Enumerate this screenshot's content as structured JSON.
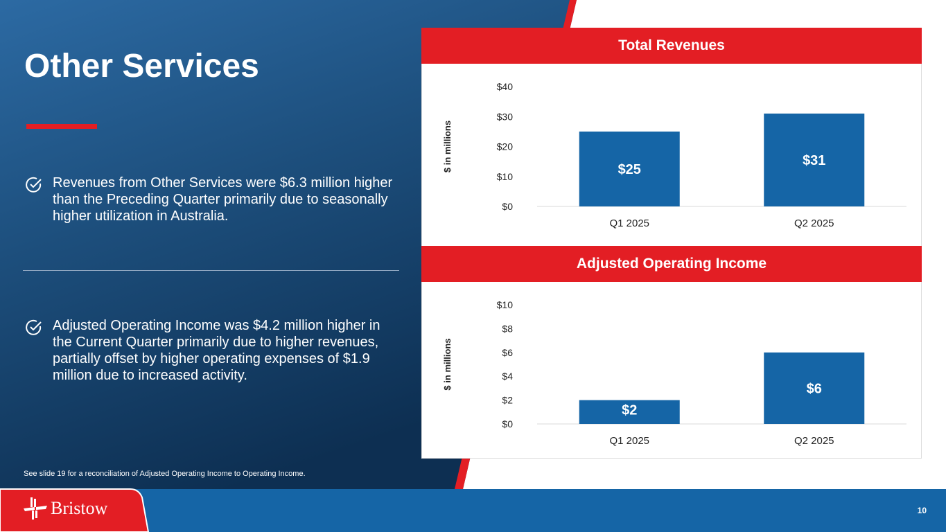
{
  "slide": {
    "title": "Other Services",
    "bullets": [
      "Revenues from Other Services were $6.3 million higher than the Preceding Quarter primarily due to seasonally higher utilization in Australia.",
      "Adjusted Operating Income was $4.2 million higher in the Current Quarter primarily due to higher revenues, partially offset by higher operating expenses of $1.9 million due to increased activity."
    ],
    "footnote": "See slide 19 for a reconciliation of Adjusted Operating Income to Operating Income.",
    "page_number": "10",
    "logo_text": "Bristow",
    "colors": {
      "brand_red": "#e31e24",
      "brand_blue": "#1565a6",
      "bar": "#1565a6"
    }
  },
  "chart_data": [
    {
      "type": "bar",
      "title": "Total Revenues",
      "ylabel": "$ in millions",
      "xlabel": "",
      "categories": [
        "Q1 2025",
        "Q2 2025"
      ],
      "values": [
        25,
        31
      ],
      "data_labels": [
        "$25",
        "$31"
      ],
      "yticks": [
        "$0",
        "$10",
        "$20",
        "$30",
        "$40"
      ],
      "ylim": [
        0,
        40
      ],
      "grid": false
    },
    {
      "type": "bar",
      "title": "Adjusted Operating Income",
      "ylabel": "$ in millions",
      "xlabel": "",
      "categories": [
        "Q1 2025",
        "Q2 2025"
      ],
      "values": [
        2,
        6
      ],
      "data_labels": [
        "$2",
        "$6"
      ],
      "yticks": [
        "$0",
        "$2",
        "$4",
        "$6",
        "$8",
        "$10"
      ],
      "ylim": [
        0,
        10
      ],
      "grid": false
    }
  ]
}
